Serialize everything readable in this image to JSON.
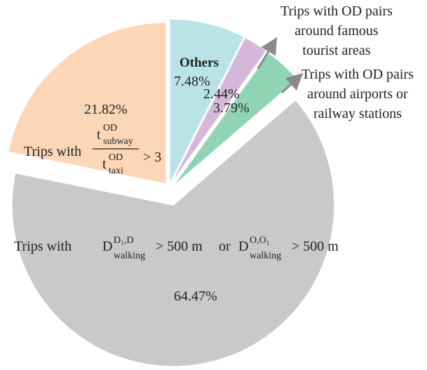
{
  "chart_data": {
    "type": "pie",
    "values": [
      7.48,
      2.44,
      3.79,
      64.47,
      21.82
    ],
    "value_labels": [
      "7.48%",
      "2.44%",
      "3.79%",
      "64.47%",
      "21.82%"
    ],
    "colors": [
      "#b9e3e6",
      "#d5b8d9",
      "#8fd4b5",
      "#c9c9c9",
      "#fbd6b7"
    ],
    "labels": [
      "Others",
      [
        "Trips with OD pairs",
        "around famous",
        "tourist areas"
      ],
      [
        "Trips with OD pairs",
        "around airports or",
        "railway stations"
      ],
      {
        "prefix": "Trips with",
        "d1": "D",
        "sup1": "D₁,D",
        "sub1": "walking",
        "gt1": "> 500 m",
        "or": "or",
        "d2": "D",
        "sup2": "O,O₁",
        "sub2": "walking",
        "gt2": "> 500 m"
      },
      {
        "prefix": "Trips with",
        "num_t": "t",
        "num_sup": "OD",
        "num_sub": "subway",
        "den_t": "t",
        "den_sup": "OD",
        "den_sub": "taxi",
        "gt": "> 3"
      }
    ]
  }
}
